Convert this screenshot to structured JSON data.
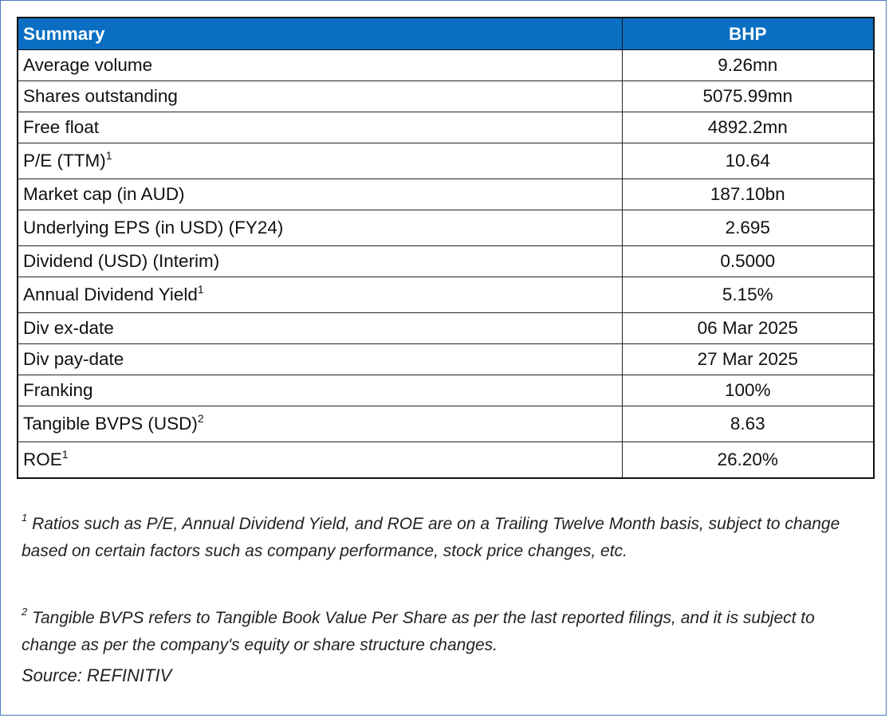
{
  "table": {
    "header": {
      "label": "Summary",
      "value": "BHP"
    },
    "rows": [
      {
        "label": "Average volume",
        "sup": "",
        "value": "9.26mn"
      },
      {
        "label": "Shares outstanding",
        "sup": "",
        "value": "5075.99mn"
      },
      {
        "label": "Free float",
        "sup": "",
        "value": "4892.2mn"
      },
      {
        "label": "P/E (TTM)",
        "sup": "1",
        "value": "10.64"
      },
      {
        "label": "Market cap (in AUD)",
        "sup": "",
        "value": "187.10bn"
      },
      {
        "label": "Underlying EPS (in USD) (FY24)",
        "sup": "",
        "value": "2.695"
      },
      {
        "label": "Dividend (USD) (Interim)",
        "sup": "",
        "value": "0.5000"
      },
      {
        "label": "Annual Dividend Yield",
        "sup": "1",
        "value": "5.15%"
      },
      {
        "label": "Div ex-date",
        "sup": "",
        "value": "06 Mar 2025"
      },
      {
        "label": "Div pay-date",
        "sup": "",
        "value": "27 Mar 2025"
      },
      {
        "label": "Franking",
        "sup": "",
        "value": "100%"
      },
      {
        "label": "Tangible BVPS (USD)",
        "sup": "2",
        "value": "8.63"
      },
      {
        "label": "ROE",
        "sup": "1",
        "value": "26.20%"
      }
    ]
  },
  "footnotes": [
    {
      "marker": "1",
      "text": " Ratios such as P/E,  Annual Dividend Yield, and ROE are on a Trailing Twelve Month basis, subject to change based on certain factors such as company performance, stock price changes, etc."
    },
    {
      "marker": "2",
      "text": " Tangible BVPS refers to Tangible Book Value Per Share as per the last reported filings, and it is subject to change as per the company's equity or share structure changes."
    }
  ],
  "source": "Source: REFINITIV",
  "colors": {
    "header_bg": "#0a6fc2",
    "header_text": "#ffffff",
    "frame_border": "#4a7bc0"
  }
}
